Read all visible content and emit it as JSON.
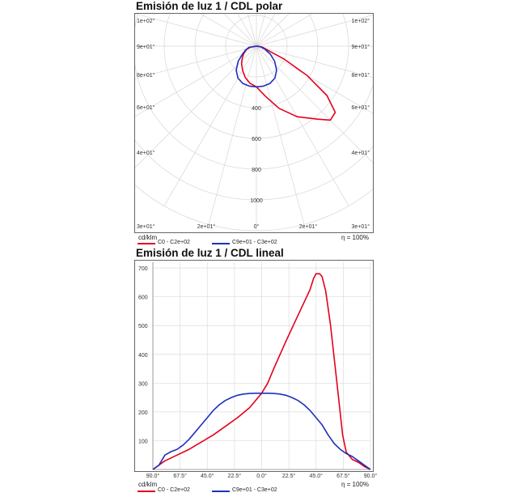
{
  "chart_data": [
    {
      "type": "polar",
      "title": "Emisión de luz 1 / CDL polar",
      "unit": "cd/klm",
      "efficiency": "η = 100%",
      "radial_ticks": [
        "400",
        "600",
        "800",
        "1000"
      ],
      "angle_labels": [
        "1e+02°",
        "1e+02°",
        "9e+01°",
        "9e+01°",
        "8e+01°",
        "8e+01°",
        "6e+01°",
        "6e+01°",
        "4e+01°",
        "4e+01°",
        "3e+01°",
        "2e+01°",
        "0°",
        "2e+01°",
        "3e+01°"
      ],
      "rmax": 1200,
      "grid": true,
      "legend_position": "bottom",
      "series": [
        {
          "name": "C0 - C2e+02",
          "color": "#e3001b",
          "angles": [
            -90,
            -80,
            -70,
            -60,
            -50,
            -40,
            -30,
            -20,
            -10,
            0,
            10,
            20,
            30,
            40,
            45,
            50,
            55,
            60,
            65,
            70,
            75,
            80,
            85,
            90
          ],
          "values": [
            0,
            40,
            70,
            95,
            120,
            150,
            180,
            215,
            245,
            265,
            330,
            430,
            530,
            620,
            680,
            670,
            560,
            380,
            200,
            80,
            55,
            40,
            15,
            0
          ]
        },
        {
          "name": "C9e+01 - C3e+02",
          "color": "#1f2fbf",
          "angles": [
            -90,
            -80,
            -70,
            -60,
            -50,
            -40,
            -30,
            -20,
            -10,
            0,
            10,
            20,
            30,
            40,
            50,
            60,
            70,
            80,
            90
          ],
          "values": [
            0,
            50,
            75,
            105,
            155,
            205,
            240,
            258,
            264,
            265,
            264,
            258,
            240,
            205,
            155,
            105,
            60,
            30,
            0
          ]
        }
      ]
    },
    {
      "type": "line",
      "title": "Emisión de luz 1 / CDL lineal",
      "unit": "cd/klm",
      "efficiency": "η = 100%",
      "xticks": [
        "90.0°",
        "67.5°",
        "45.0°",
        "22.5°",
        "0.0°",
        "22.5°",
        "45.0°",
        "67.5°",
        "90.0°"
      ],
      "xlim": [
        -90,
        90
      ],
      "yticks": [
        100,
        200,
        300,
        400,
        500,
        600,
        700
      ],
      "ylim": [
        0,
        720
      ],
      "grid": true,
      "legend_position": "bottom",
      "series": [
        {
          "name": "C0 - C2e+02",
          "color": "#e3001b",
          "x": [
            -90,
            -80,
            -75,
            -70,
            -60,
            -50,
            -40,
            -30,
            -20,
            -10,
            0,
            5,
            10,
            20,
            30,
            40,
            43,
            45,
            48,
            50,
            53,
            57,
            62,
            67,
            70,
            75,
            80,
            85,
            90
          ],
          "y": [
            0,
            30,
            40,
            50,
            70,
            95,
            120,
            150,
            180,
            215,
            265,
            300,
            350,
            445,
            535,
            625,
            665,
            680,
            680,
            670,
            620,
            500,
            310,
            120,
            60,
            35,
            25,
            10,
            0
          ]
        },
        {
          "name": "C9e+01 - C3e+02",
          "color": "#1f2fbf",
          "x": [
            -90,
            -85,
            -80,
            -75,
            -70,
            -65,
            -60,
            -55,
            -50,
            -45,
            -40,
            -35,
            -30,
            -25,
            -20,
            -15,
            -10,
            -5,
            0,
            5,
            10,
            15,
            20,
            25,
            30,
            35,
            40,
            45,
            50,
            55,
            60,
            65,
            70,
            75,
            80,
            85,
            90
          ],
          "y": [
            0,
            15,
            50,
            62,
            70,
            85,
            105,
            130,
            155,
            180,
            205,
            225,
            240,
            250,
            258,
            262,
            264,
            265,
            265,
            265,
            264,
            262,
            258,
            250,
            240,
            225,
            205,
            180,
            155,
            120,
            90,
            70,
            55,
            45,
            30,
            15,
            0
          ]
        }
      ]
    }
  ]
}
